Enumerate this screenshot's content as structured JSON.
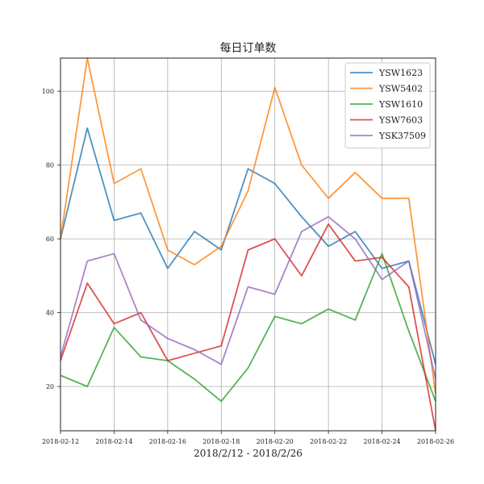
{
  "chart_data": {
    "type": "line",
    "title": "每日订单数",
    "xlabel": "2018/2/12 - 2018/2/26",
    "ylabel": "",
    "x": [
      "2018-02-12",
      "2018-02-13",
      "2018-02-14",
      "2018-02-15",
      "2018-02-16",
      "2018-02-17",
      "2018-02-18",
      "2018-02-19",
      "2018-02-20",
      "2018-02-21",
      "2018-02-22",
      "2018-02-23",
      "2018-02-24",
      "2018-02-25",
      "2018-02-26"
    ],
    "xticks": [
      "2018-02-12",
      "2018-02-14",
      "2018-02-16",
      "2018-02-18",
      "2018-02-20",
      "2018-02-22",
      "2018-02-24",
      "2018-02-26"
    ],
    "yticks": [
      20,
      40,
      60,
      80,
      100
    ],
    "xlim": [
      "2018-02-12",
      "2018-02-26"
    ],
    "ylim": [
      8,
      109
    ],
    "grid": true,
    "legend": "top-right",
    "series": [
      {
        "name": "YSW1623",
        "color": "#1f77b4",
        "values": [
          60,
          90,
          65,
          67,
          52,
          62,
          57,
          79,
          75,
          66,
          58,
          62,
          52,
          54,
          26
        ]
      },
      {
        "name": "YSW5402",
        "color": "#ff7f0e",
        "values": [
          60,
          109,
          75,
          79,
          57,
          53,
          58,
          73,
          101,
          80,
          71,
          78,
          71,
          71,
          18
        ]
      },
      {
        "name": "YSW1610",
        "color": "#2ca02c",
        "values": [
          23,
          20,
          36,
          28,
          27,
          22,
          16,
          25,
          39,
          37,
          41,
          38,
          56,
          35,
          16
        ]
      },
      {
        "name": "YSW7603",
        "color": "#d62728",
        "values": [
          27,
          48,
          37,
          40,
          27,
          29,
          31,
          57,
          60,
          50,
          64,
          54,
          55,
          47,
          8
        ]
      },
      {
        "name": "YSK37509",
        "color": "#9467bd",
        "values": [
          28,
          54,
          56,
          38,
          33,
          30,
          26,
          47,
          45,
          62,
          66,
          60,
          49,
          54,
          22
        ]
      }
    ]
  }
}
